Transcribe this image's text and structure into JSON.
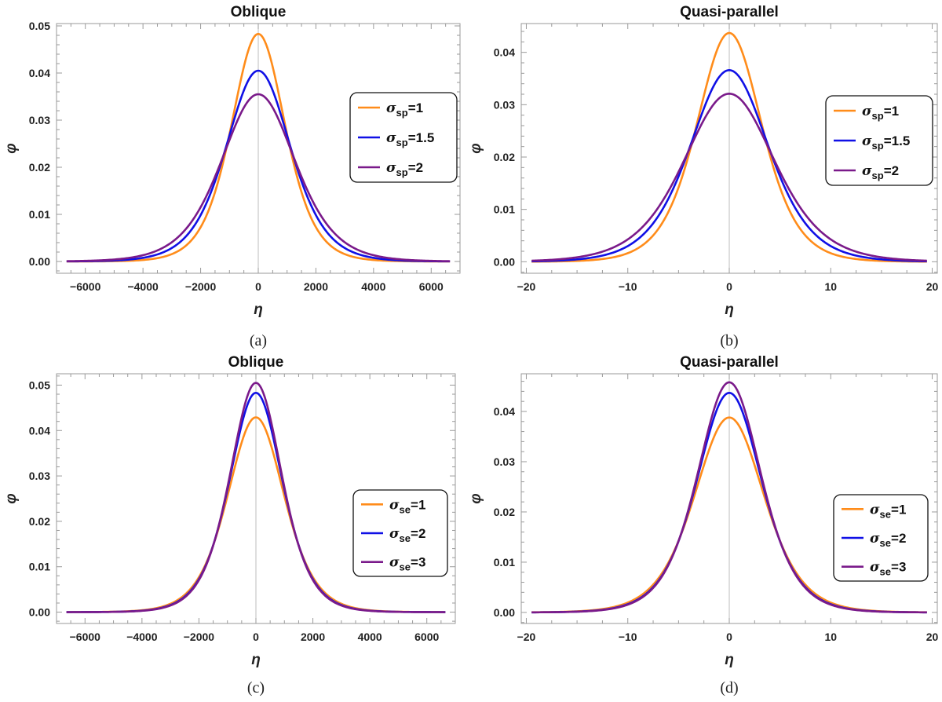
{
  "figure": {
    "panels": [
      {
        "caption": "(a)",
        "title": "Oblique"
      },
      {
        "caption": "(b)",
        "title": "Quasi-parallel"
      },
      {
        "caption": "(c)",
        "title": "Oblique"
      },
      {
        "caption": "(d)",
        "title": "Quasi-parallel"
      }
    ]
  },
  "colors": {
    "orange": "#ff8c1a",
    "blue": "#1010e6",
    "purple": "#7a1a8a",
    "frame": "#9a9a9a",
    "center_line": "#bdbdbd",
    "text": "#222222"
  },
  "chart_data": [
    {
      "type": "line",
      "title": "Oblique",
      "caption": "(a)",
      "xlabel": "η",
      "ylabel": "φ",
      "xlim": [
        -7000,
        7000
      ],
      "ylim": [
        -0.0025,
        0.0505
      ],
      "xticks": [
        -6000,
        -4000,
        -2000,
        0,
        2000,
        4000,
        6000
      ],
      "xtick_labels": [
        "−6000",
        "−4000",
        "−2000",
        "0",
        "2000",
        "4000",
        "6000"
      ],
      "yticks": [
        0.0,
        0.01,
        0.02,
        0.03,
        0.04,
        0.05
      ],
      "ytick_labels": [
        "0.00",
        "0.01",
        "0.02",
        "0.03",
        "0.04",
        "0.05"
      ],
      "legend_position": "center-right",
      "legend_symbol": "σ",
      "legend_subscript": "sp",
      "series": [
        {
          "name": "σsp=1",
          "symbol": "σ",
          "sub": "sp",
          "value": "=1",
          "color": "#ff8c1a",
          "amplitude": 0.0483,
          "width": 1250
        },
        {
          "name": "σsp=1.5",
          "symbol": "σ",
          "sub": "sp",
          "value": "=1.5",
          "color": "#1010e6",
          "amplitude": 0.0405,
          "width": 1500
        },
        {
          "name": "σsp=2",
          "symbol": "σ",
          "sub": "sp",
          "value": "=2",
          "color": "#7a1a8a",
          "amplitude": 0.0355,
          "width": 1720
        }
      ]
    },
    {
      "type": "line",
      "title": "Quasi-parallel",
      "caption": "(b)",
      "xlabel": "η",
      "ylabel": "φ",
      "xlim": [
        -20.5,
        20.5
      ],
      "ylim": [
        -0.0022,
        0.0455
      ],
      "xticks": [
        -20,
        -10,
        0,
        10,
        20
      ],
      "xtick_labels": [
        "−20",
        "−10",
        "0",
        "10",
        "20"
      ],
      "yticks": [
        0.0,
        0.01,
        0.02,
        0.03,
        0.04
      ],
      "ytick_labels": [
        "0.00",
        "0.01",
        "0.02",
        "0.03",
        "0.04"
      ],
      "legend_position": "center-right",
      "legend_symbol": "σ",
      "legend_subscript": "sp",
      "series": [
        {
          "name": "σsp=1",
          "symbol": "σ",
          "sub": "sp",
          "value": "=1",
          "color": "#ff8c1a",
          "amplitude": 0.0437,
          "width": 4.3
        },
        {
          "name": "σsp=1.5",
          "symbol": "σ",
          "sub": "sp",
          "value": "=1.5",
          "color": "#1010e6",
          "amplitude": 0.0366,
          "width": 5.2
        },
        {
          "name": "σsp=2",
          "symbol": "σ",
          "sub": "sp",
          "value": "=2",
          "color": "#7a1a8a",
          "amplitude": 0.0321,
          "width": 6.0
        }
      ]
    },
    {
      "type": "line",
      "title": "Oblique",
      "caption": "(c)",
      "xlabel": "η",
      "ylabel": "φ",
      "xlim": [
        -7000,
        7000
      ],
      "ylim": [
        -0.0025,
        0.0525
      ],
      "xticks": [
        -6000,
        -4000,
        -2000,
        0,
        2000,
        4000,
        6000
      ],
      "xtick_labels": [
        "−6000",
        "−4000",
        "−2000",
        "0",
        "2000",
        "4000",
        "6000"
      ],
      "yticks": [
        0.0,
        0.01,
        0.02,
        0.03,
        0.04,
        0.05
      ],
      "ytick_labels": [
        "0.00",
        "0.01",
        "0.02",
        "0.03",
        "0.04",
        "0.05"
      ],
      "legend_position": "lower-right",
      "legend_symbol": "σ",
      "legend_subscript": "se",
      "series": [
        {
          "name": "σse=1",
          "symbol": "σ",
          "sub": "se",
          "value": "=1",
          "color": "#ff8c1a",
          "amplitude": 0.0429,
          "width": 1330
        },
        {
          "name": "σse=2",
          "symbol": "σ",
          "sub": "se",
          "value": "=2",
          "color": "#1010e6",
          "amplitude": 0.0483,
          "width": 1250
        },
        {
          "name": "σse=3",
          "symbol": "σ",
          "sub": "se",
          "value": "=3",
          "color": "#7a1a8a",
          "amplitude": 0.0505,
          "width": 1220
        }
      ]
    },
    {
      "type": "line",
      "title": "Quasi-parallel",
      "caption": "(d)",
      "xlabel": "η",
      "ylabel": "φ",
      "xlim": [
        -20.5,
        20.5
      ],
      "ylim": [
        -0.0022,
        0.0475
      ],
      "xticks": [
        -20,
        -10,
        0,
        10,
        20
      ],
      "xtick_labels": [
        "−20",
        "−10",
        "0",
        "10",
        "20"
      ],
      "yticks": [
        0.0,
        0.01,
        0.02,
        0.03,
        0.04
      ],
      "ytick_labels": [
        "0.00",
        "0.01",
        "0.02",
        "0.03",
        "0.04"
      ],
      "legend_position": "lower-right",
      "legend_symbol": "σ",
      "legend_subscript": "se",
      "series": [
        {
          "name": "σse=1",
          "symbol": "σ",
          "sub": "se",
          "value": "=1",
          "color": "#ff8c1a",
          "amplitude": 0.0388,
          "width": 4.6
        },
        {
          "name": "σse=2",
          "symbol": "σ",
          "sub": "se",
          "value": "=2",
          "color": "#1010e6",
          "amplitude": 0.0437,
          "width": 4.3
        },
        {
          "name": "σse=3",
          "symbol": "σ",
          "sub": "se",
          "value": "=3",
          "color": "#7a1a8a",
          "amplitude": 0.0458,
          "width": 4.2
        }
      ]
    }
  ]
}
